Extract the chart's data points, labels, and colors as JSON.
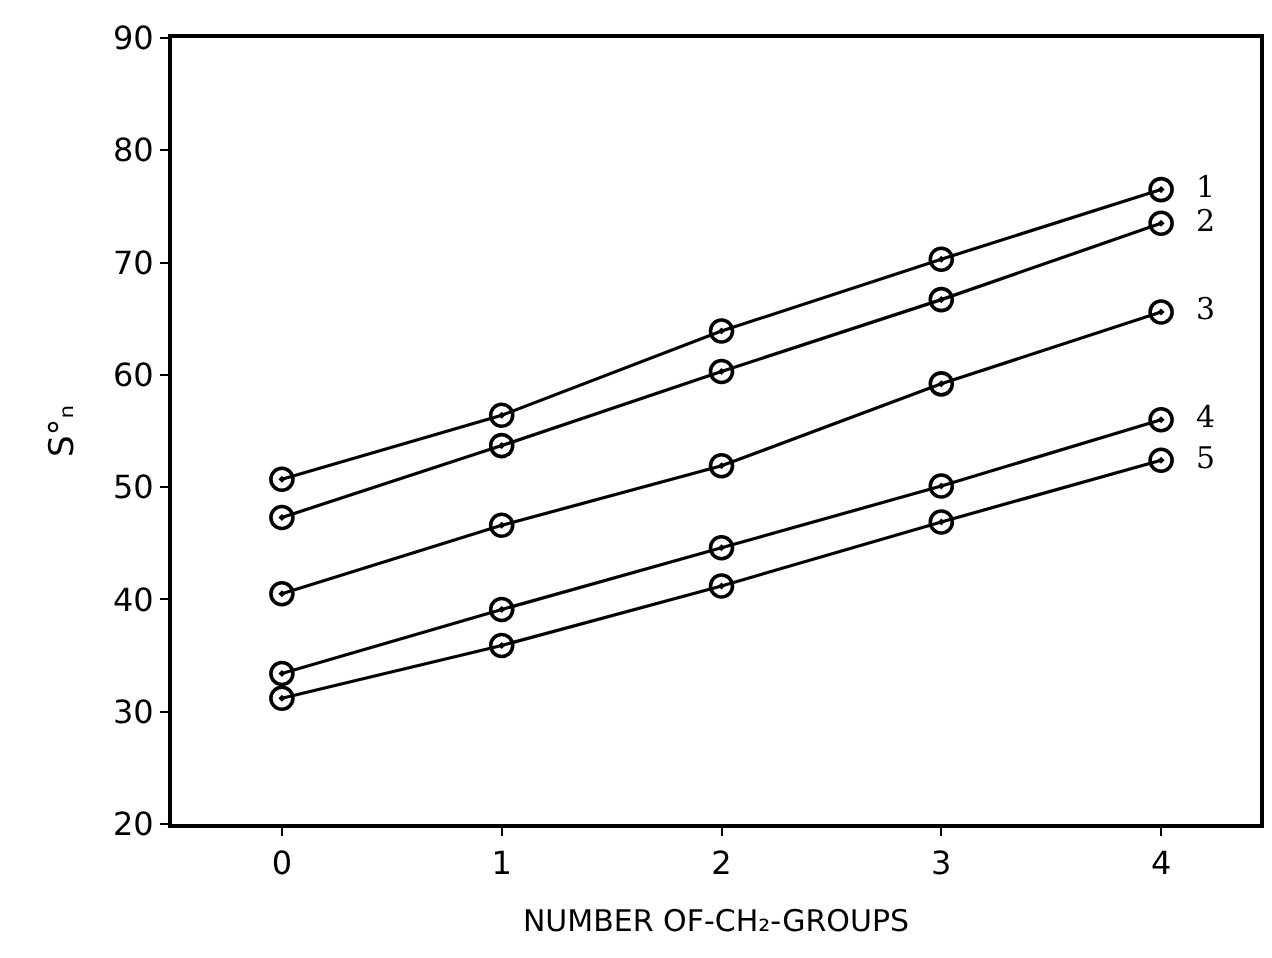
{
  "chart_data": {
    "type": "line",
    "xlabel": "NUMBER OF-CH₂-GROUPS",
    "ylabel": "S°ₙ",
    "x": [
      0,
      1,
      2,
      3,
      4
    ],
    "xlim": [
      -0.5,
      4.45
    ],
    "xticks": [
      0,
      1,
      2,
      3,
      4
    ],
    "ylim": [
      20,
      90
    ],
    "yticks": [
      20,
      30,
      40,
      50,
      60,
      70,
      80,
      90
    ],
    "legend": false,
    "marker": "circle",
    "line_style": "solid",
    "series": [
      {
        "name": "1",
        "color": "#000000",
        "values": [
          50.7,
          56.4,
          63.9,
          70.3,
          76.5
        ]
      },
      {
        "name": "2",
        "color": "#000000",
        "values": [
          47.3,
          53.7,
          60.3,
          66.7,
          73.5
        ]
      },
      {
        "name": "3",
        "color": "#000000",
        "values": [
          40.5,
          46.6,
          51.9,
          59.2,
          65.6
        ]
      },
      {
        "name": "4",
        "color": "#000000",
        "values": [
          33.4,
          39.1,
          44.6,
          50.1,
          56.0
        ]
      },
      {
        "name": "5",
        "color": "#000000",
        "values": [
          31.2,
          35.9,
          41.2,
          46.9,
          52.4
        ]
      }
    ]
  }
}
